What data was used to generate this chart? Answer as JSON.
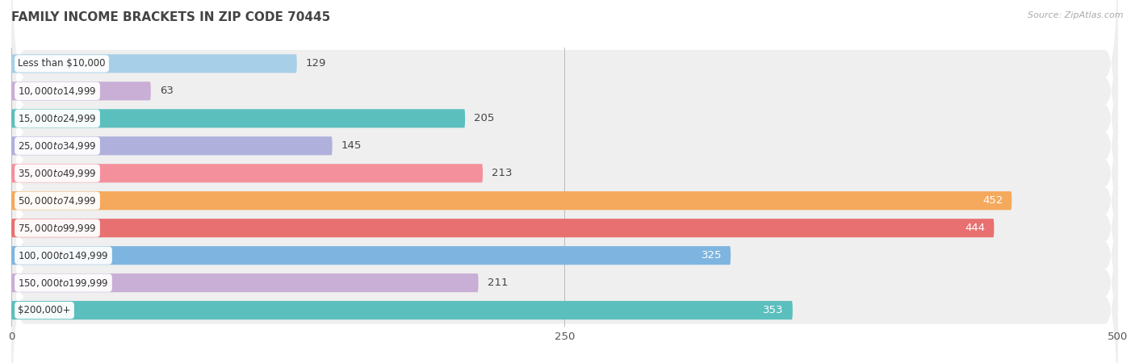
{
  "title": "FAMILY INCOME BRACKETS IN ZIP CODE 70445",
  "source": "Source: ZipAtlas.com",
  "categories": [
    "Less than $10,000",
    "$10,000 to $14,999",
    "$15,000 to $24,999",
    "$25,000 to $34,999",
    "$35,000 to $49,999",
    "$50,000 to $74,999",
    "$75,000 to $99,999",
    "$100,000 to $149,999",
    "$150,000 to $199,999",
    "$200,000+"
  ],
  "values": [
    129,
    63,
    205,
    145,
    213,
    452,
    444,
    325,
    211,
    353
  ],
  "bar_colors": [
    "#a8cfe8",
    "#c9aed6",
    "#5bbfbe",
    "#b0b0dd",
    "#f4909c",
    "#f5a95c",
    "#e87070",
    "#7eb5e0",
    "#c9aed6",
    "#5bbfbe"
  ],
  "label_colors_inside": [
    false,
    false,
    false,
    false,
    false,
    true,
    true,
    true,
    false,
    true
  ],
  "xlim": [
    0,
    500
  ],
  "xticks": [
    0,
    250,
    500
  ],
  "title_fontsize": 11,
  "bar_height": 0.68,
  "value_fontsize": 9.5,
  "cat_fontsize": 8.5,
  "source_fontsize": 8
}
